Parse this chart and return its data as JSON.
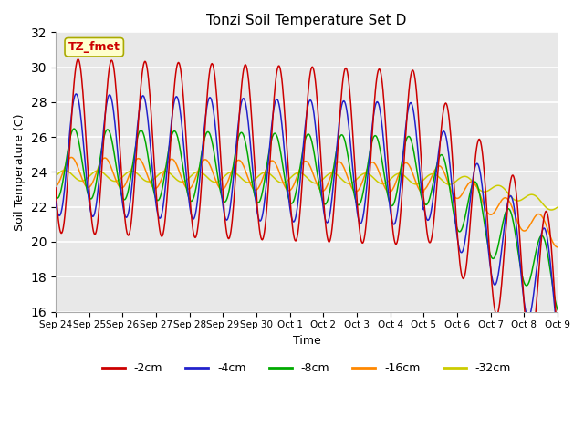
{
  "title": "Tonzi Soil Temperature Set D",
  "xlabel": "Time",
  "ylabel": "Soil Temperature (C)",
  "ylim": [
    16,
    32
  ],
  "yticks": [
    16,
    18,
    20,
    22,
    24,
    26,
    28,
    30,
    32
  ],
  "legend_labels": [
    "-2cm",
    "-4cm",
    "-8cm",
    "-16cm",
    "-32cm"
  ],
  "colors": [
    "#cc0000",
    "#2222cc",
    "#00aa00",
    "#ff8800",
    "#cccc00"
  ],
  "annotation_text": "TZ_fmet",
  "annotation_fg": "#cc0000",
  "annotation_bg": "#ffffcc",
  "annotation_border": "#aaaa00",
  "fig_bg": "#ffffff",
  "plot_bg": "#e8e8e8",
  "grid_color": "#ffffff",
  "xtick_labels": [
    "Sep 24",
    "Sep 25",
    "Sep 26",
    "Sep 27",
    "Sep 28",
    "Sep 29",
    "Sep 30",
    "Oct 1",
    "Oct 2",
    "Oct 3",
    "Oct 4",
    "Oct 5",
    "Oct 6",
    "Oct 7",
    "Oct 8",
    "Oct 9"
  ],
  "num_days": 16
}
